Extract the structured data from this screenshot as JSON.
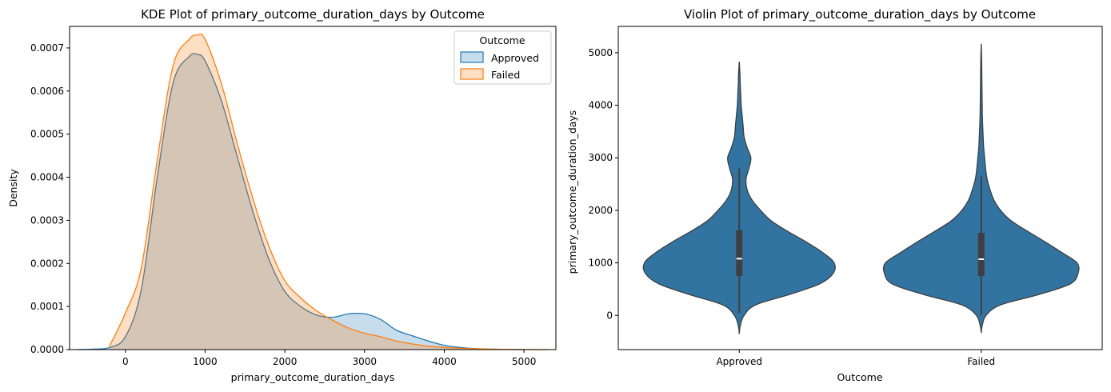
{
  "colors": {
    "approved_line": "#1f77b4",
    "approved_fill": "#1f77b4",
    "failed_line": "#ff7f0e",
    "failed_fill": "#ff7f0e",
    "violin_fill": "#3274a1",
    "violin_edge": "#3f3f3f",
    "box": "#3f3f3f",
    "median": "#ffffff"
  },
  "chart_data": [
    {
      "type": "area",
      "title": "KDE Plot of primary_outcome_duration_days by Outcome",
      "xlabel": "primary_outcome_duration_days",
      "ylabel": "Density",
      "xlim": [
        -700,
        5400
      ],
      "ylim": [
        0,
        0.00075
      ],
      "xticks": [
        0,
        1000,
        2000,
        3000,
        4000,
        5000
      ],
      "xtick_labels": [
        "0",
        "1000",
        "2000",
        "3000",
        "4000",
        "5000"
      ],
      "yticks": [
        0,
        0.0001,
        0.0002,
        0.0003,
        0.0004,
        0.0005,
        0.0006,
        0.0007
      ],
      "ytick_labels": [
        "0.0000",
        "0.0001",
        "0.0002",
        "0.0003",
        "0.0004",
        "0.0005",
        "0.0006",
        "0.0007"
      ],
      "grid": false,
      "legend": {
        "title": "Outcome",
        "placement": "top-right"
      },
      "series": [
        {
          "name": "Approved",
          "x": [
            -600,
            -400,
            -200,
            0,
            200,
            400,
            600,
            800,
            900,
            1000,
            1200,
            1400,
            1600,
            1800,
            2000,
            2200,
            2400,
            2600,
            2800,
            3000,
            3200,
            3400,
            3600,
            3800,
            4000,
            4200,
            4400,
            4600,
            4800,
            5000
          ],
          "y": [
            0.0,
            1e-06,
            5e-06,
            3e-05,
            0.00014,
            0.0004,
            0.00062,
            0.00068,
            0.000685,
            0.00067,
            0.00058,
            0.00045,
            0.00032,
            0.00021,
            0.000135,
            0.0001,
            8e-05,
            7.5e-05,
            8.3e-05,
            8.3e-05,
            7e-05,
            4.5e-05,
            3.2e-05,
            2e-05,
            1e-05,
            5e-06,
            2e-06,
            1e-06,
            5e-07,
            0.0
          ]
        },
        {
          "name": "Failed",
          "x": [
            -200,
            0,
            200,
            400,
            600,
            800,
            900,
            1000,
            1200,
            1400,
            1600,
            1800,
            2000,
            2200,
            2400,
            2600,
            2800,
            3000,
            3200,
            3400,
            3600,
            3800,
            4000,
            4200,
            4400,
            4600,
            4800,
            5000,
            5300
          ],
          "y": [
            8e-06,
            8.5e-05,
            0.00019,
            0.00044,
            0.00066,
            0.00072,
            0.00073,
            0.00072,
            0.00062,
            0.00048,
            0.00035,
            0.00024,
            0.00016,
            0.00012,
            9e-05,
            6.8e-05,
            5e-05,
            3.8e-05,
            3e-05,
            2e-05,
            1.3e-05,
            8e-06,
            5e-06,
            3e-06,
            2e-06,
            1e-06,
            5e-07,
            2e-07,
            0.0
          ]
        }
      ]
    },
    {
      "type": "violin",
      "title": "Violin Plot of primary_outcome_duration_days by Outcome",
      "xlabel": "Outcome",
      "ylabel": "primary_outcome_duration_days",
      "categories": [
        "Approved",
        "Failed"
      ],
      "ylim": [
        -650,
        5500
      ],
      "yticks": [
        0,
        1000,
        2000,
        3000,
        4000,
        5000
      ],
      "ytick_labels": [
        "0",
        "1000",
        "2000",
        "3000",
        "4000",
        "5000"
      ],
      "grid": false,
      "violins": [
        {
          "name": "Approved",
          "y": [
            -350,
            -200,
            0,
            200,
            400,
            600,
            800,
            1000,
            1200,
            1400,
            1600,
            1800,
            2000,
            2200,
            2400,
            2600,
            2800,
            3000,
            3200,
            3400,
            3600,
            3800,
            4000,
            4200,
            4400,
            4600,
            4830
          ],
          "half_width": [
            0.0,
            0.01,
            0.05,
            0.17,
            0.52,
            0.83,
            0.97,
            0.98,
            0.86,
            0.69,
            0.5,
            0.33,
            0.22,
            0.13,
            0.08,
            0.07,
            0.1,
            0.12,
            0.08,
            0.05,
            0.04,
            0.03,
            0.02,
            0.015,
            0.01,
            0.007,
            0.0
          ],
          "q1": 750,
          "median": 1080,
          "q3": 1620,
          "whisker_low": 50,
          "whisker_high": 2800
        },
        {
          "name": "Failed",
          "y": [
            -330,
            -200,
            0,
            200,
            400,
            600,
            800,
            1000,
            1200,
            1400,
            1600,
            1800,
            2000,
            2200,
            2400,
            2600,
            2800,
            3000,
            3200,
            3400,
            3600,
            3800,
            4000,
            4300,
            4600,
            4900,
            5170
          ],
          "half_width": [
            0.0,
            0.01,
            0.05,
            0.2,
            0.6,
            0.92,
            1.0,
            0.99,
            0.83,
            0.66,
            0.48,
            0.31,
            0.2,
            0.13,
            0.09,
            0.06,
            0.045,
            0.035,
            0.025,
            0.02,
            0.015,
            0.012,
            0.01,
            0.008,
            0.006,
            0.004,
            0.0
          ],
          "q1": 750,
          "median": 1070,
          "q3": 1570,
          "whisker_low": 0,
          "whisker_high": 2650
        }
      ]
    }
  ]
}
